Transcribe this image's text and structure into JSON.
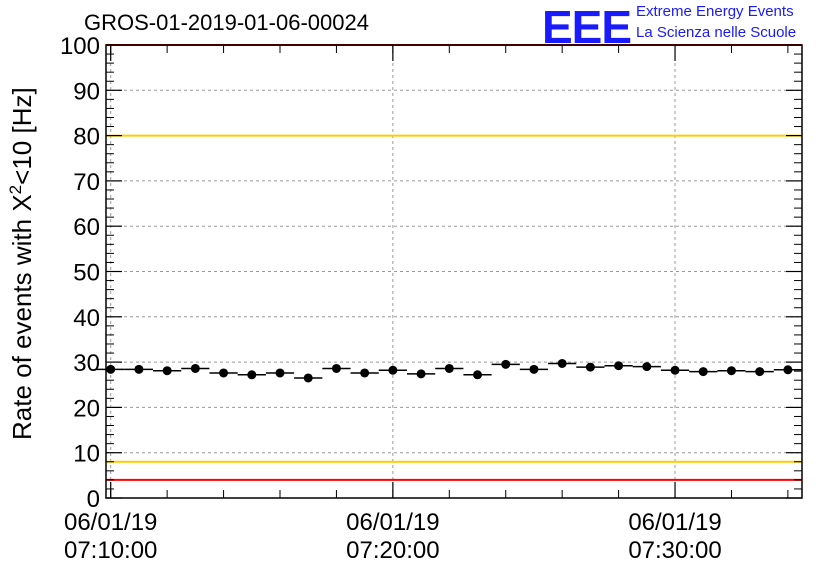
{
  "header": {
    "run_title": "GROS-01-2019-01-06-00024",
    "logo_text": "EEE",
    "org_line1": "Extreme Energy Events",
    "org_line2": "La Scienza nelle Scuole"
  },
  "chart_data": {
    "type": "scatter",
    "title": "GROS-01-2019-01-06-00024",
    "ylabel_main": "Rate of events with X",
    "ylabel_sup": "2",
    "ylabel_tail": "<10 [Hz]",
    "xlabel": "",
    "ylim": [
      0,
      100
    ],
    "yticks": [
      "0",
      "10",
      "20",
      "30",
      "40",
      "50",
      "60",
      "70",
      "80",
      "90",
      "100"
    ],
    "xlim": [
      "2019-01-06 07:09:50",
      "2019-01-06 07:34:30"
    ],
    "xticks": [
      {
        "date": "06/01/19",
        "time": "07:10:00"
      },
      {
        "date": "06/01/19",
        "time": "07:20:00"
      },
      {
        "date": "06/01/19",
        "time": "07:30:00"
      }
    ],
    "grid": true,
    "reference_lines": [
      {
        "y": 100,
        "color": "#ff0000"
      },
      {
        "y": 80,
        "color": "#ffcc00"
      },
      {
        "y": 8,
        "color": "#ffcc00"
      },
      {
        "y": 4,
        "color": "#ff0000"
      }
    ],
    "series": [
      {
        "marker_color": "#000000",
        "x": [
          "07:10:00",
          "07:11:00",
          "07:12:00",
          "07:13:00",
          "07:14:00",
          "07:15:00",
          "07:16:00",
          "07:17:00",
          "07:18:00",
          "07:19:00",
          "07:20:00",
          "07:21:00",
          "07:22:00",
          "07:23:00",
          "07:24:00",
          "07:25:00",
          "07:26:00",
          "07:27:00",
          "07:28:00",
          "07:29:00",
          "07:30:00",
          "07:31:00",
          "07:32:00",
          "07:33:00",
          "07:34:00"
        ],
        "values": [
          28.4,
          28.4,
          28.1,
          28.6,
          27.6,
          27.2,
          27.6,
          26.5,
          28.6,
          27.6,
          28.2,
          27.4,
          28.6,
          27.2,
          29.5,
          28.4,
          29.7,
          28.9,
          29.2,
          29.0,
          28.2,
          27.9,
          28.1,
          27.9,
          28.3
        ]
      }
    ]
  }
}
